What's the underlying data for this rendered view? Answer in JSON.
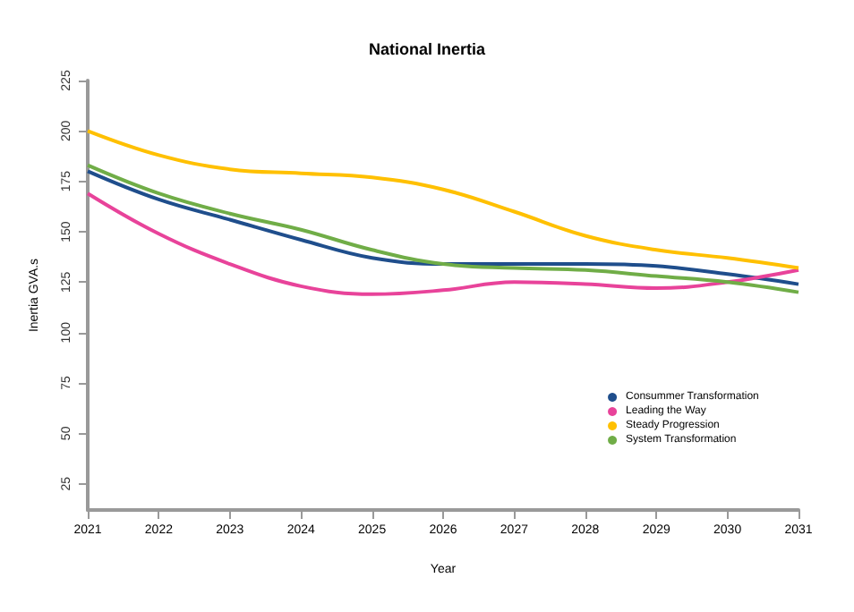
{
  "chart_data": {
    "type": "line",
    "title": "National Inertia",
    "xlabel": "Year",
    "ylabel": "Inertia GVA.s",
    "x": [
      2021,
      2022,
      2023,
      2024,
      2025,
      2026,
      2027,
      2028,
      2029,
      2030,
      2031
    ],
    "series": [
      {
        "name": "Consummer Transformation",
        "color": "#1f4e8c",
        "values": [
          180,
          166,
          156,
          146,
          137,
          134,
          134,
          134,
          133,
          129,
          124
        ]
      },
      {
        "name": "Leading the Way",
        "color": "#e8439a",
        "values": [
          169,
          149,
          134,
          123,
          119,
          121,
          125,
          124,
          122,
          125,
          131
        ]
      },
      {
        "name": "Steady Progression",
        "color": "#ffc000",
        "values": [
          200,
          188,
          181,
          179,
          177,
          171,
          160,
          148,
          141,
          137,
          132
        ]
      },
      {
        "name": "System Transformation",
        "color": "#70ad47",
        "values": [
          183,
          169,
          159,
          151,
          141,
          134,
          132,
          131,
          128,
          125,
          120
        ]
      }
    ],
    "xlim": [
      2021,
      2031
    ],
    "xticks": [
      2021,
      2022,
      2023,
      2024,
      2025,
      2026,
      2027,
      2028,
      2029,
      2030,
      2031
    ],
    "ylim": [
      12,
      225
    ],
    "yticks": [
      25,
      50,
      75,
      100,
      125,
      150,
      175,
      200,
      225
    ],
    "grid": false,
    "legend": "bottom right",
    "marker": "none",
    "line_style": "solid"
  }
}
